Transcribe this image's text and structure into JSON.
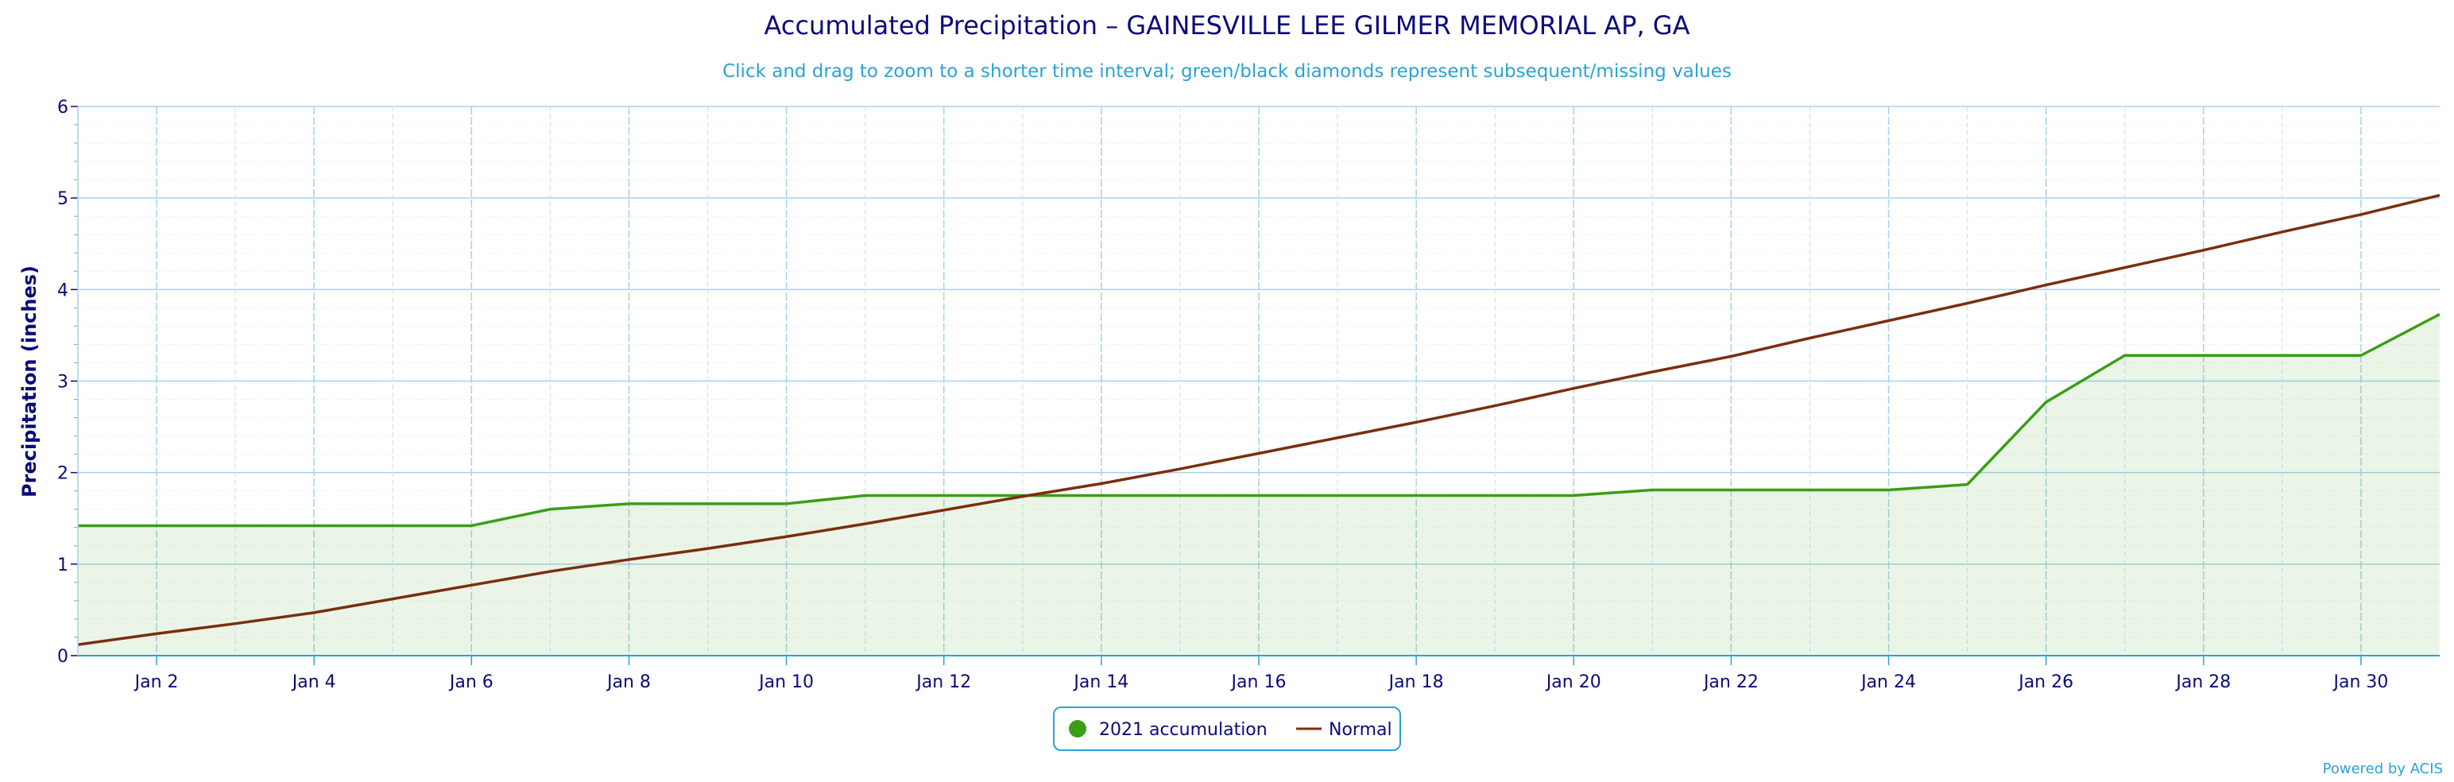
{
  "chart_data": {
    "type": "line",
    "title": "Accumulated Precipitation – GAINESVILLE LEE GILMER MEMORIAL AP, GA",
    "subtitle": "Click and drag to zoom to a shorter time interval; green/black diamonds represent subsequent/missing values",
    "ylabel": "Precipitation (inches)",
    "xlabel": "",
    "xlim": [
      1,
      31
    ],
    "ylim": [
      0,
      6
    ],
    "ytick_values": [
      0,
      1,
      2,
      3,
      4,
      5,
      6
    ],
    "ytick_labels": [
      "0",
      "1",
      "2",
      "3",
      "4",
      "5",
      "6"
    ],
    "xtick_values": [
      2,
      4,
      6,
      8,
      10,
      12,
      14,
      16,
      18,
      20,
      22,
      24,
      26,
      28,
      30
    ],
    "xtick_labels": [
      "Jan 2",
      "Jan 4",
      "Jan 6",
      "Jan 8",
      "Jan 10",
      "Jan 12",
      "Jan 14",
      "Jan 16",
      "Jan 18",
      "Jan 20",
      "Jan 22",
      "Jan 24",
      "Jan 26",
      "Jan 28",
      "Jan 30"
    ],
    "grid": true,
    "legend_position": "bottom-center",
    "series": [
      {
        "name": "2021 accumulation",
        "kind": "area",
        "color": "#3a9e17",
        "fill_color": "#3a9e17",
        "x": [
          1,
          2,
          3,
          4,
          5,
          6,
          7,
          8,
          9,
          10,
          11,
          12,
          13,
          14,
          15,
          16,
          17,
          18,
          19,
          20,
          21,
          22,
          23,
          24,
          25,
          26,
          27,
          28,
          29,
          30,
          31
        ],
        "values": [
          1.42,
          1.42,
          1.42,
          1.42,
          1.42,
          1.42,
          1.6,
          1.66,
          1.66,
          1.66,
          1.75,
          1.75,
          1.75,
          1.75,
          1.75,
          1.75,
          1.75,
          1.75,
          1.75,
          1.75,
          1.81,
          1.81,
          1.81,
          1.81,
          1.87,
          2.77,
          3.28,
          3.28,
          3.28,
          3.28,
          3.73
        ]
      },
      {
        "name": "Normal",
        "kind": "line",
        "color": "#7a2e0e",
        "x": [
          1,
          2,
          3,
          4,
          5,
          6,
          7,
          8,
          9,
          10,
          11,
          12,
          13,
          14,
          15,
          16,
          17,
          18,
          19,
          20,
          21,
          22,
          23,
          24,
          25,
          26,
          27,
          28,
          29,
          30,
          31
        ],
        "values": [
          0.12,
          0.24,
          0.35,
          0.47,
          0.62,
          0.77,
          0.92,
          1.05,
          1.17,
          1.3,
          1.44,
          1.59,
          1.74,
          1.88,
          2.04,
          2.21,
          2.38,
          2.55,
          2.73,
          2.92,
          3.1,
          3.27,
          3.47,
          3.66,
          3.85,
          4.05,
          4.24,
          4.43,
          4.63,
          4.82,
          5.03
        ]
      }
    ]
  },
  "legend": {
    "items": [
      "2021 accumulation",
      "Normal"
    ]
  },
  "credits": "Powered by ACIS"
}
